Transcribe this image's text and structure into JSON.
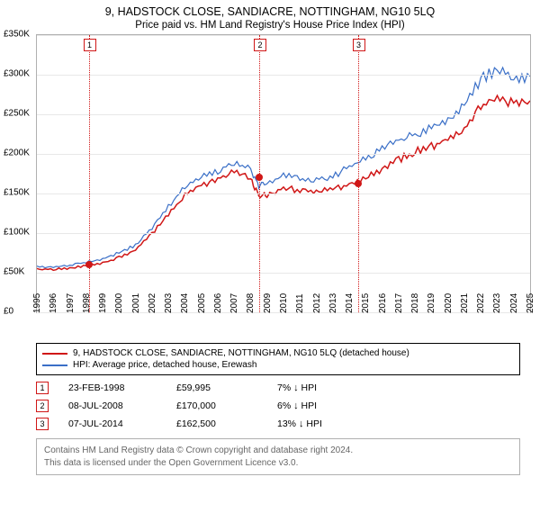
{
  "title_line1": "9, HADSTOCK CLOSE, SANDIACRE, NOTTINGHAM, NG10 5LQ",
  "title_line2": "Price paid vs. HM Land Registry's House Price Index (HPI)",
  "chart": {
    "type": "line",
    "background_color": "#ffffff",
    "grid_color": "#e8e8e8",
    "border_color": "#b0b0b0",
    "y": {
      "min": 0,
      "max": 350000,
      "step": 50000,
      "ticks": [
        "£0",
        "£50K",
        "£100K",
        "£150K",
        "£200K",
        "£250K",
        "£300K",
        "£350K"
      ]
    },
    "x": {
      "min": 1995,
      "max": 2025,
      "step": 1,
      "ticks": [
        "1995",
        "1996",
        "1997",
        "1998",
        "1999",
        "2000",
        "2001",
        "2002",
        "2003",
        "2004",
        "2005",
        "2006",
        "2007",
        "2008",
        "2009",
        "2010",
        "2011",
        "2012",
        "2013",
        "2014",
        "2015",
        "2016",
        "2017",
        "2018",
        "2019",
        "2020",
        "2021",
        "2022",
        "2023",
        "2024",
        "2025"
      ]
    },
    "series": [
      {
        "name": "red",
        "color": "#d01717",
        "width": 1.5,
        "points": [
          [
            1995,
            55000
          ],
          [
            1996,
            55000
          ],
          [
            1997,
            56000
          ],
          [
            1998,
            59995
          ],
          [
            1999,
            63000
          ],
          [
            2000,
            70000
          ],
          [
            2001,
            80000
          ],
          [
            2002,
            100000
          ],
          [
            2003,
            125000
          ],
          [
            2004,
            150000
          ],
          [
            2005,
            162000
          ],
          [
            2006,
            170000
          ],
          [
            2007,
            180000
          ],
          [
            2008,
            170000
          ],
          [
            2008.5,
            148000
          ],
          [
            2009,
            150000
          ],
          [
            2010,
            160000
          ],
          [
            2011,
            155000
          ],
          [
            2012,
            155000
          ],
          [
            2013,
            158000
          ],
          [
            2014,
            162500
          ],
          [
            2015,
            172000
          ],
          [
            2016,
            182000
          ],
          [
            2017,
            195000
          ],
          [
            2018,
            205000
          ],
          [
            2019,
            212000
          ],
          [
            2020,
            220000
          ],
          [
            2021,
            235000
          ],
          [
            2022,
            262000
          ],
          [
            2023,
            272000
          ],
          [
            2024,
            268000
          ],
          [
            2025,
            267000
          ]
        ]
      },
      {
        "name": "blue",
        "color": "#3a6fc7",
        "width": 1.2,
        "points": [
          [
            1995,
            58000
          ],
          [
            1996,
            58000
          ],
          [
            1997,
            60000
          ],
          [
            1998,
            64000
          ],
          [
            1999,
            68000
          ],
          [
            2000,
            76000
          ],
          [
            2001,
            86000
          ],
          [
            2002,
            108000
          ],
          [
            2003,
            135000
          ],
          [
            2004,
            160000
          ],
          [
            2005,
            172000
          ],
          [
            2006,
            180000
          ],
          [
            2007,
            192000
          ],
          [
            2008,
            182000
          ],
          [
            2008.5,
            162000
          ],
          [
            2009,
            165000
          ],
          [
            2010,
            175000
          ],
          [
            2011,
            170000
          ],
          [
            2012,
            170000
          ],
          [
            2013,
            173000
          ],
          [
            2014,
            186000
          ],
          [
            2015,
            196000
          ],
          [
            2016,
            208000
          ],
          [
            2017,
            220000
          ],
          [
            2018,
            228000
          ],
          [
            2019,
            235000
          ],
          [
            2020,
            245000
          ],
          [
            2021,
            265000
          ],
          [
            2022,
            298000
          ],
          [
            2023,
            310000
          ],
          [
            2024,
            300000
          ],
          [
            2025,
            298000
          ]
        ]
      }
    ],
    "markers": [
      {
        "n": "1",
        "x": 1998.15,
        "y": 59995
      },
      {
        "n": "2",
        "x": 2008.52,
        "y": 170000
      },
      {
        "n": "3",
        "x": 2014.52,
        "y": 162500
      }
    ]
  },
  "legend": [
    {
      "color": "#d01717",
      "label": "9, HADSTOCK CLOSE, SANDIACRE, NOTTINGHAM, NG10 5LQ (detached house)"
    },
    {
      "color": "#3a6fc7",
      "label": "HPI: Average price, detached house, Erewash"
    }
  ],
  "sales": [
    {
      "n": "1",
      "date": "23-FEB-1998",
      "price": "£59,995",
      "note": "7% ↓ HPI"
    },
    {
      "n": "2",
      "date": "08-JUL-2008",
      "price": "£170,000",
      "note": "6% ↓ HPI"
    },
    {
      "n": "3",
      "date": "07-JUL-2014",
      "price": "£162,500",
      "note": "13% ↓ HPI"
    }
  ],
  "footer_line1": "Contains HM Land Registry data © Crown copyright and database right 2024.",
  "footer_line2": "This data is licensed under the Open Government Licence v3.0."
}
